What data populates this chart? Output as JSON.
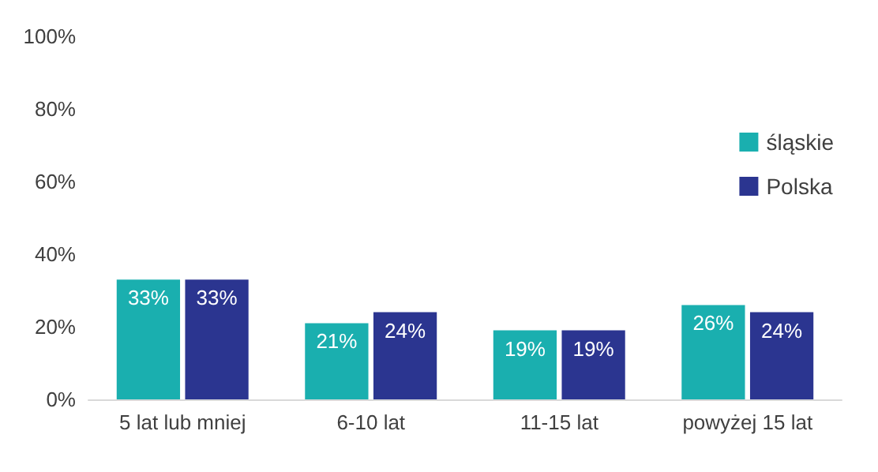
{
  "chart_data": {
    "type": "bar",
    "categories": [
      "5 lat lub mniej",
      "6-10 lat",
      "11-15 lat",
      "powyżej 15 lat"
    ],
    "series": [
      {
        "name": "śląskie",
        "color": "#1aafaf",
        "values": [
          33,
          21,
          19,
          26
        ],
        "value_labels": [
          "33%",
          "21%",
          "19%",
          "26%"
        ]
      },
      {
        "name": "Polska",
        "color": "#2b3590",
        "values": [
          33,
          24,
          19,
          24
        ],
        "value_labels": [
          "33%",
          "24%",
          "19%",
          "24%"
        ]
      }
    ],
    "ylim": [
      0,
      100
    ],
    "yticks": [
      {
        "value": 0,
        "label": "0%"
      },
      {
        "value": 20,
        "label": "20%"
      },
      {
        "value": 40,
        "label": "40%"
      },
      {
        "value": 60,
        "label": "60%"
      },
      {
        "value": 80,
        "label": "80%"
      },
      {
        "value": 100,
        "label": "100%"
      }
    ],
    "grid": false,
    "legend": "right"
  }
}
